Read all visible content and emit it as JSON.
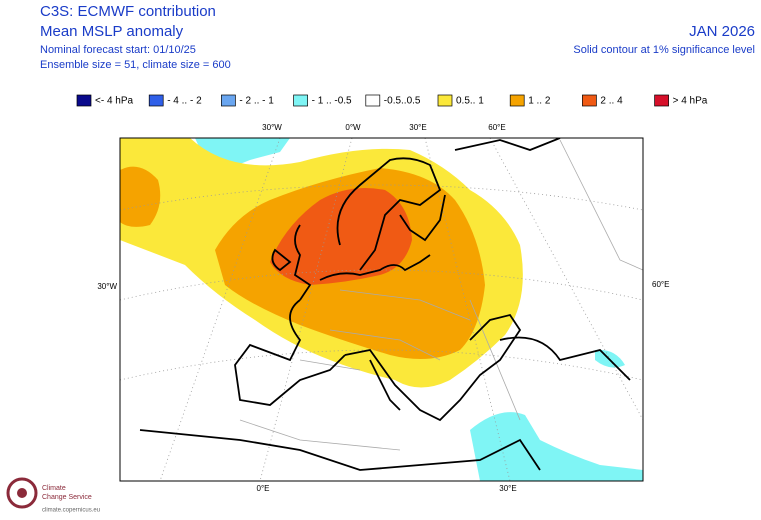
{
  "header": {
    "title": "C3S: ECMWF contribution",
    "subtitle": "Mean MSLP anomaly",
    "forecast_start": "Nominal forecast start: 01/10/25",
    "ensemble": "Ensemble size = 51, climate size = 600",
    "period": "JAN 2026",
    "note": "Solid contour at 1% significance level"
  },
  "legend": [
    {
      "label": "<- 4 hPa",
      "color": "#0a0a8c"
    },
    {
      "label": "- 4 .. - 2",
      "color": "#2f5fe8"
    },
    {
      "label": "- 2 .. - 1",
      "color": "#6aa6f0"
    },
    {
      "label": "- 1 .. -0.5",
      "color": "#7ff5f5"
    },
    {
      "label": "-0.5..0.5",
      "color": "#ffffff"
    },
    {
      "label": "0.5.. 1",
      "color": "#fbe83a"
    },
    {
      "label": "1 .. 2",
      "color": "#f5a300"
    },
    {
      "label": "2 .. 4",
      "color": "#f05a14"
    },
    {
      "label": "> 4 hPa",
      "color": "#d6102a"
    }
  ],
  "map": {
    "top_labels": [
      "30°W",
      "0°W",
      "30°E",
      "60°E"
    ],
    "left_label": "30°W",
    "right_label": "60°E",
    "bottom_labels": [
      "0°E",
      "30°E"
    ]
  },
  "logo": {
    "line1": "Climate",
    "line2": "Change Service",
    "url": "climate.copernicus.eu"
  }
}
